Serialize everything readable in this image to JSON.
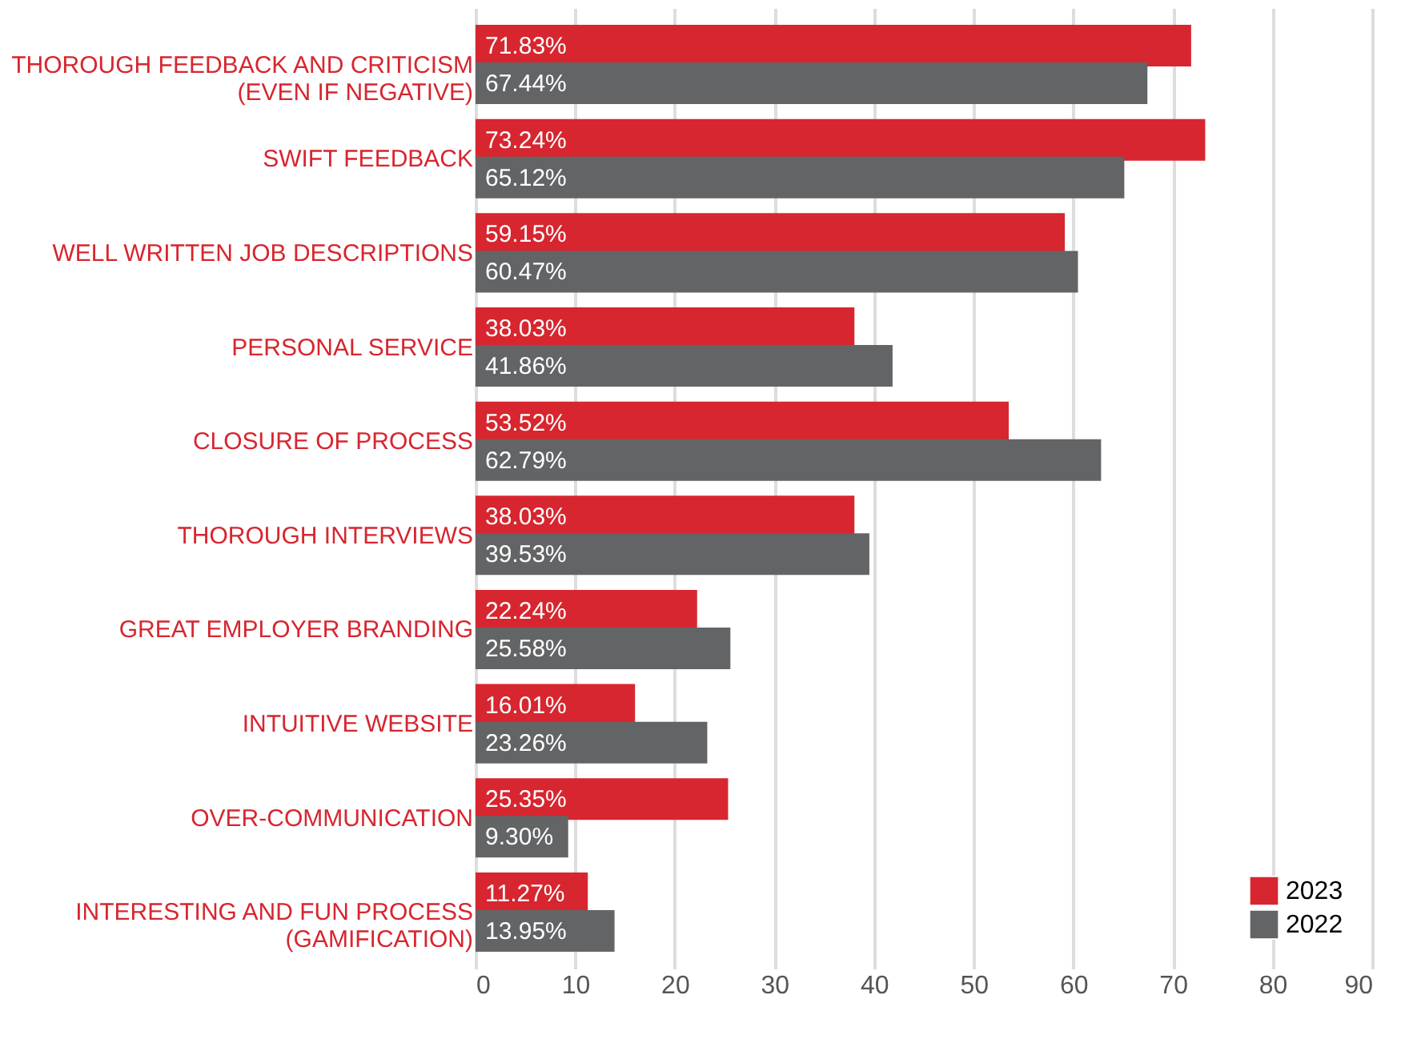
{
  "chart_data": {
    "type": "bar",
    "orientation": "horizontal",
    "categories": [
      "THOROUGH FEEDBACK AND CRITICISM\n(EVEN IF NEGATIVE)",
      "SWIFT FEEDBACK",
      "WELL WRITTEN JOB DESCRIPTIONS",
      "PERSONAL SERVICE",
      "CLOSURE OF PROCESS",
      "THOROUGH INTERVIEWS",
      "GREAT EMPLOYER BRANDING",
      "INTUITIVE WEBSITE",
      "OVER-COMMUNICATION",
      "INTERESTING AND FUN PROCESS\n(GAMIFICATION)"
    ],
    "series": [
      {
        "name": "2023",
        "color": "#d7262f",
        "values": [
          71.83,
          73.24,
          59.15,
          38.03,
          53.52,
          38.03,
          22.24,
          16.01,
          25.35,
          11.27
        ],
        "value_labels": [
          "71.83%",
          "73.24%",
          "59.15%",
          "38.03%",
          "53.52%",
          "38.03%",
          "22.24%",
          "16.01%",
          "25.35%",
          "11.27%"
        ]
      },
      {
        "name": "2022",
        "color": "#636466",
        "values": [
          67.44,
          65.12,
          60.47,
          41.86,
          62.79,
          39.53,
          25.58,
          23.26,
          9.3,
          13.95
        ],
        "value_labels": [
          "67.44%",
          "65.12%",
          "60.47%",
          "41.86%",
          "62.79%",
          "39.53%",
          "25.58%",
          "23.26%",
          "9.30%",
          "13.95%"
        ]
      }
    ],
    "xlim": [
      0,
      90
    ],
    "xticks": [
      0,
      10,
      20,
      30,
      40,
      50,
      60,
      70,
      80,
      90
    ],
    "grid": "x",
    "legend": "bottom right"
  }
}
